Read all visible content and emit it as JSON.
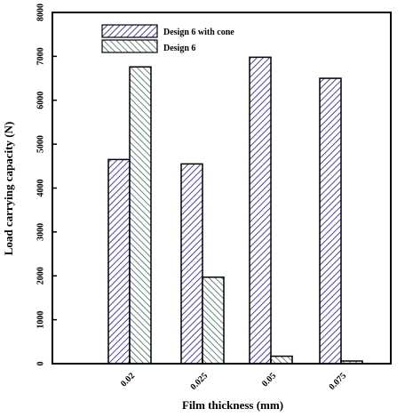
{
  "chart_data": {
    "type": "bar",
    "xlabel": "Film thickness (mm)",
    "ylabel": "Load carrying capacity (N)",
    "categories": [
      "0.02",
      "0.025",
      "0.05",
      "0.075"
    ],
    "ylim": [
      0,
      8000
    ],
    "yticks": [
      0,
      1000,
      2000,
      3000,
      4000,
      5000,
      6000,
      7000,
      8000
    ],
    "grid": false,
    "legend_position": "top-left",
    "series": [
      {
        "name": "Design 6 with cone",
        "values": [
          4650,
          4550,
          6980,
          6500
        ],
        "color": "#4b3fb5",
        "fill": "hatch-diagonal-right"
      },
      {
        "name": "Design 6",
        "values": [
          6760,
          1970,
          170,
          60
        ],
        "color": "#3c6e57",
        "fill": "hatch-diagonal-left"
      }
    ]
  }
}
